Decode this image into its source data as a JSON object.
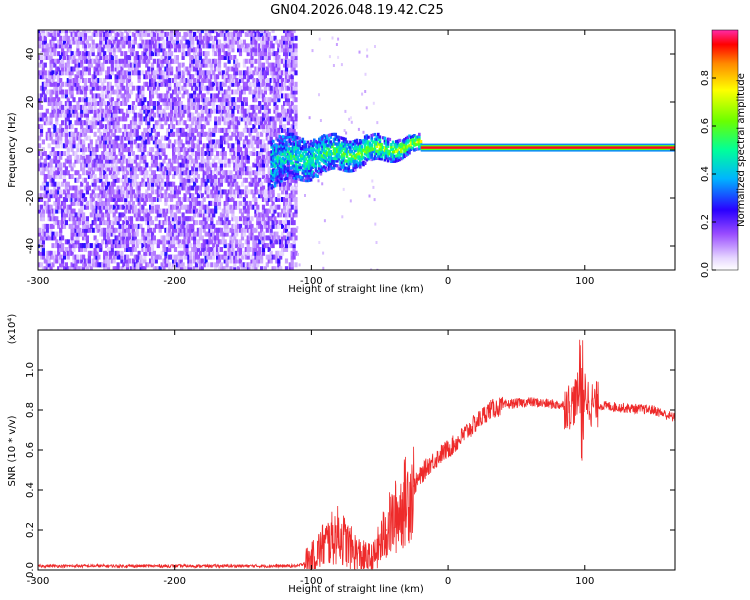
{
  "title": "GN04.2026.048.19.42.C25",
  "chart_data": [
    {
      "type": "heatmap",
      "name": "spectrogram",
      "xlabel": "Height of straight line (km)",
      "ylabel": "Frequency (Hz)",
      "xlim": [
        -300,
        166
      ],
      "ylim": [
        -50,
        50
      ],
      "xticks": [
        -300,
        -200,
        -100,
        0,
        100
      ],
      "yticks": [
        -40,
        -20,
        0,
        20,
        40
      ],
      "regions": [
        {
          "name": "noise",
          "x": [
            -300,
            -112
          ],
          "freq": [
            -50,
            50
          ],
          "amplitude": 0.15
        },
        {
          "name": "transition",
          "x": [
            -130,
            -20
          ],
          "freq_center": [
            -5,
            2
          ],
          "freq_halfwidth": [
            10,
            3
          ],
          "amplitude_max": 0.45
        },
        {
          "name": "carrier",
          "x": [
            -20,
            166
          ],
          "freq": 1,
          "amplitude": 0.95
        }
      ],
      "colorbar": {
        "label": "Normalized spectral amplitude",
        "ticks": [
          0.0,
          0.2,
          0.4,
          0.6,
          0.8
        ],
        "range": [
          0,
          1
        ]
      }
    },
    {
      "type": "line",
      "name": "snr",
      "xlabel": "Height of straight line (km)",
      "ylabel": "SNR (10 * v/v)",
      "yscale_label": "(x10⁴)",
      "xlim": [
        -300,
        166
      ],
      "ylim": [
        0,
        1.2
      ],
      "xticks": [
        -300,
        -200,
        -100,
        0,
        100
      ],
      "yticks": [
        0.0,
        0.2,
        0.4,
        0.6,
        0.8,
        1.0
      ],
      "series": [
        {
          "name": "SNR",
          "color": "#ee2a2a",
          "x": [
            -300,
            -200,
            -110,
            -100,
            -92,
            -80,
            -70,
            -62,
            -55,
            -45,
            -35,
            -25,
            -15,
            -5,
            5,
            15,
            30,
            45,
            60,
            75,
            90,
            98,
            105,
            115,
            130,
            150,
            166
          ],
          "y": [
            0.02,
            0.02,
            0.02,
            0.05,
            0.12,
            0.18,
            0.1,
            0.06,
            0.05,
            0.2,
            0.3,
            0.42,
            0.52,
            0.58,
            0.63,
            0.7,
            0.8,
            0.83,
            0.84,
            0.83,
            0.82,
            0.9,
            0.83,
            0.82,
            0.81,
            0.8,
            0.76
          ]
        }
      ]
    }
  ]
}
